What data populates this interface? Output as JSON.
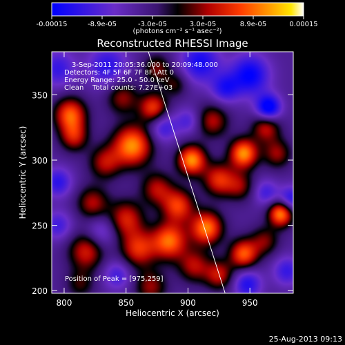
{
  "colorbar": {
    "tick_labels": [
      "-0.00015",
      "-8.9e-05",
      "-3.0e-05",
      "3.0e-05",
      "8.9e-05",
      "0.00015"
    ],
    "unit_label": "(photons cm⁻² s⁻¹ asec⁻²)",
    "range": [
      -0.00015,
      0.00015
    ]
  },
  "chart_data": {
    "type": "heatmap",
    "title": "Reconstructed RHESSI Image",
    "xlabel": "Heliocentric X (arcsec)",
    "ylabel": "Heliocentric Y (arcsec)",
    "xlim": [
      790,
      985
    ],
    "ylim": [
      198,
      383
    ],
    "x_ticks": [
      800,
      850,
      900,
      950
    ],
    "y_ticks": [
      200,
      250,
      300,
      350
    ],
    "colormap": "RHESSI red-temperature (blue→purple→black→red→orange→yellow→white)",
    "annotations": [
      "3-Sep-2011 20:05:36.000 to 20:09:48.000",
      "Detectors: 4F 5F 6F 7F 8F, Att 0",
      "Energy Range: 25.0 - 50.0 keV",
      "Clean    Total counts: 7.27E+03"
    ],
    "peak_label": "Position of Peak = [975,259]",
    "peak_position": [
      975,
      259
    ],
    "limb_line": {
      "x": [
        868,
        930
      ],
      "y": [
        383,
        198
      ]
    },
    "blobs": [
      {
        "x": 805,
        "y": 335,
        "v": 0.85,
        "s": 9
      },
      {
        "x": 808,
        "y": 318,
        "v": 0.6,
        "s": 8
      },
      {
        "x": 847,
        "y": 348,
        "v": 0.5,
        "s": 9
      },
      {
        "x": 872,
        "y": 340,
        "v": 0.75,
        "s": 8
      },
      {
        "x": 855,
        "y": 311,
        "v": 1.0,
        "s": 11
      },
      {
        "x": 833,
        "y": 298,
        "v": 0.55,
        "s": 9
      },
      {
        "x": 823,
        "y": 267,
        "v": 0.55,
        "s": 9
      },
      {
        "x": 818,
        "y": 230,
        "v": 0.65,
        "s": 10
      },
      {
        "x": 813,
        "y": 205,
        "v": 0.35,
        "s": 8
      },
      {
        "x": 850,
        "y": 255,
        "v": 0.65,
        "s": 10
      },
      {
        "x": 860,
        "y": 232,
        "v": 0.7,
        "s": 10
      },
      {
        "x": 870,
        "y": 203,
        "v": 0.5,
        "s": 9
      },
      {
        "x": 875,
        "y": 278,
        "v": 0.55,
        "s": 9
      },
      {
        "x": 903,
        "y": 300,
        "v": 1.0,
        "s": 8
      },
      {
        "x": 892,
        "y": 265,
        "v": 0.75,
        "s": 9
      },
      {
        "x": 885,
        "y": 238,
        "v": 0.9,
        "s": 10
      },
      {
        "x": 905,
        "y": 219,
        "v": 0.55,
        "s": 9
      },
      {
        "x": 915,
        "y": 248,
        "v": 0.95,
        "s": 9
      },
      {
        "x": 925,
        "y": 285,
        "v": 0.7,
        "s": 9
      },
      {
        "x": 920,
        "y": 330,
        "v": 0.55,
        "s": 9
      },
      {
        "x": 945,
        "y": 305,
        "v": 1.0,
        "s": 8
      },
      {
        "x": 942,
        "y": 280,
        "v": 0.45,
        "s": 8
      },
      {
        "x": 963,
        "y": 325,
        "v": 0.6,
        "s": 8
      },
      {
        "x": 972,
        "y": 305,
        "v": 0.5,
        "s": 8
      },
      {
        "x": 945,
        "y": 228,
        "v": 0.85,
        "s": 8
      },
      {
        "x": 925,
        "y": 212,
        "v": 0.6,
        "s": 8
      },
      {
        "x": 975,
        "y": 259,
        "v": 1.0,
        "s": 7
      },
      {
        "x": 962,
        "y": 238,
        "v": 0.45,
        "s": 8
      },
      {
        "x": 875,
        "y": 370,
        "v": 0.45,
        "s": 8
      },
      {
        "x": 890,
        "y": 358,
        "v": 0.35,
        "s": 7
      },
      {
        "x": 830,
        "y": 245,
        "v": -0.35,
        "s": 9
      },
      {
        "x": 880,
        "y": 325,
        "v": -0.45,
        "s": 8
      },
      {
        "x": 795,
        "y": 370,
        "v": -0.45,
        "s": 10
      },
      {
        "x": 835,
        "y": 372,
        "v": -0.5,
        "s": 11
      },
      {
        "x": 910,
        "y": 375,
        "v": -0.6,
        "s": 11
      },
      {
        "x": 950,
        "y": 365,
        "v": -0.7,
        "s": 11
      },
      {
        "x": 965,
        "y": 340,
        "v": -0.85,
        "s": 7
      },
      {
        "x": 930,
        "y": 355,
        "v": -0.5,
        "s": 8
      },
      {
        "x": 795,
        "y": 283,
        "v": -0.5,
        "s": 8
      },
      {
        "x": 795,
        "y": 250,
        "v": -0.4,
        "s": 8
      },
      {
        "x": 983,
        "y": 270,
        "v": -0.55,
        "s": 7
      },
      {
        "x": 963,
        "y": 275,
        "v": -0.4,
        "s": 7
      },
      {
        "x": 948,
        "y": 205,
        "v": -0.55,
        "s": 8
      },
      {
        "x": 980,
        "y": 215,
        "v": -0.45,
        "s": 8
      },
      {
        "x": 843,
        "y": 212,
        "v": -0.4,
        "s": 8
      },
      {
        "x": 900,
        "y": 330,
        "v": -0.35,
        "s": 7
      }
    ]
  },
  "footer": {
    "timestamp": "25-Aug-2013 09:13"
  }
}
